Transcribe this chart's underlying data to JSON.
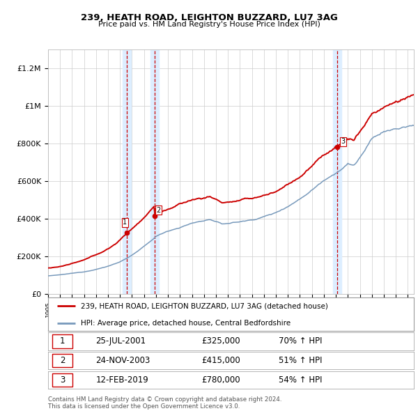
{
  "title": "239, HEATH ROAD, LEIGHTON BUZZARD, LU7 3AG",
  "subtitle": "Price paid vs. HM Land Registry's House Price Index (HPI)",
  "property_label": "239, HEATH ROAD, LEIGHTON BUZZARD, LU7 3AG (detached house)",
  "hpi_label": "HPI: Average price, detached house, Central Bedfordshire",
  "footer": "Contains HM Land Registry data © Crown copyright and database right 2024.\nThis data is licensed under the Open Government Licence v3.0.",
  "sales": [
    {
      "num": 1,
      "date": "25-JUL-2001",
      "price": 325000,
      "pct": "70%",
      "dir": "↑"
    },
    {
      "num": 2,
      "date": "24-NOV-2003",
      "price": 415000,
      "pct": "51%",
      "dir": "↑"
    },
    {
      "num": 3,
      "date": "12-FEB-2019",
      "price": 780000,
      "pct": "54%",
      "dir": "↑"
    }
  ],
  "sale_years": [
    2001.56,
    2003.9,
    2019.12
  ],
  "sale_prices": [
    325000,
    415000,
    780000
  ],
  "property_color": "#cc0000",
  "hpi_color": "#7799bb",
  "highlight_color": "#ddeeff",
  "sale_line_color": "#cc0000",
  "grid_color": "#cccccc",
  "background_color": "#ffffff",
  "plot_bg_color": "#ffffff",
  "ylim": [
    0,
    1300000
  ],
  "yticks": [
    0,
    200000,
    400000,
    600000,
    800000,
    1000000,
    1200000
  ],
  "ytick_labels": [
    "£0",
    "£200K",
    "£400K",
    "£600K",
    "£800K",
    "£1M",
    "£1.2M"
  ],
  "xlim_start": 1995,
  "xlim_end": 2025.5
}
